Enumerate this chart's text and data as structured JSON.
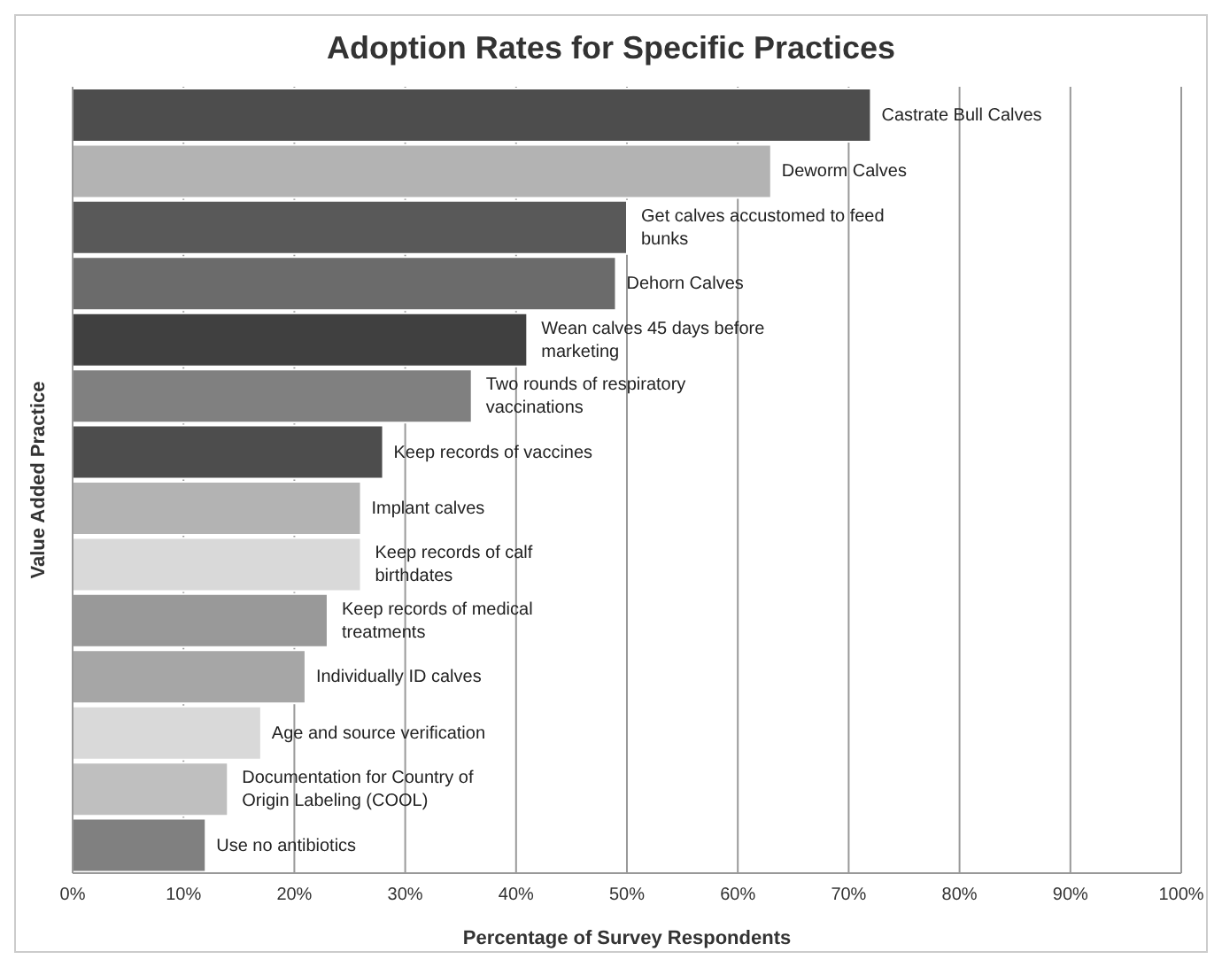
{
  "chart_data": {
    "type": "bar",
    "orientation": "horizontal",
    "title": "Adoption Rates for Specific Practices",
    "xlabel": "Percentage of Survey Respondents",
    "ylabel": "Value Added Practice",
    "categories": [
      "Castrate Bull Calves",
      "Deworm Calves",
      "Get calves accustomed to feed bunks",
      "Dehorn Calves",
      "Wean calves 45 days before marketing",
      "Two rounds of respiratory vaccinations",
      "Keep records of vaccines",
      "Implant calves",
      "Keep records of calf birthdates",
      "Keep records of medical treatments",
      "Individually ID calves",
      "Age and source verification",
      "Documentation for Country of Origin Labeling (COOL)",
      "Use no antibiotics"
    ],
    "values": [
      72,
      63,
      50,
      49,
      41,
      36,
      28,
      26,
      26,
      23,
      21,
      17,
      14,
      12
    ],
    "colors": [
      "#4d4d4d",
      "#b3b3b3",
      "#595959",
      "#6b6b6b",
      "#404040",
      "#808080",
      "#4d4d4d",
      "#b3b3b3",
      "#d9d9d9",
      "#999999",
      "#a6a6a6",
      "#d9d9d9",
      "#bfbfbf",
      "#808080"
    ],
    "xlim": [
      0,
      100
    ],
    "xticks": [
      {
        "value": 0,
        "label": "0%"
      },
      {
        "value": 10,
        "label": "10%"
      },
      {
        "value": 20,
        "label": "20%"
      },
      {
        "value": 30,
        "label": "30%"
      },
      {
        "value": 40,
        "label": "40%"
      },
      {
        "value": 50,
        "label": "50%"
      },
      {
        "value": 60,
        "label": "60%"
      },
      {
        "value": 70,
        "label": "70%"
      },
      {
        "value": 80,
        "label": "80%"
      },
      {
        "value": 90,
        "label": "90%"
      },
      {
        "value": 100,
        "label": "100%"
      }
    ],
    "grid": "x",
    "tick_labels": "x",
    "legend": false
  }
}
